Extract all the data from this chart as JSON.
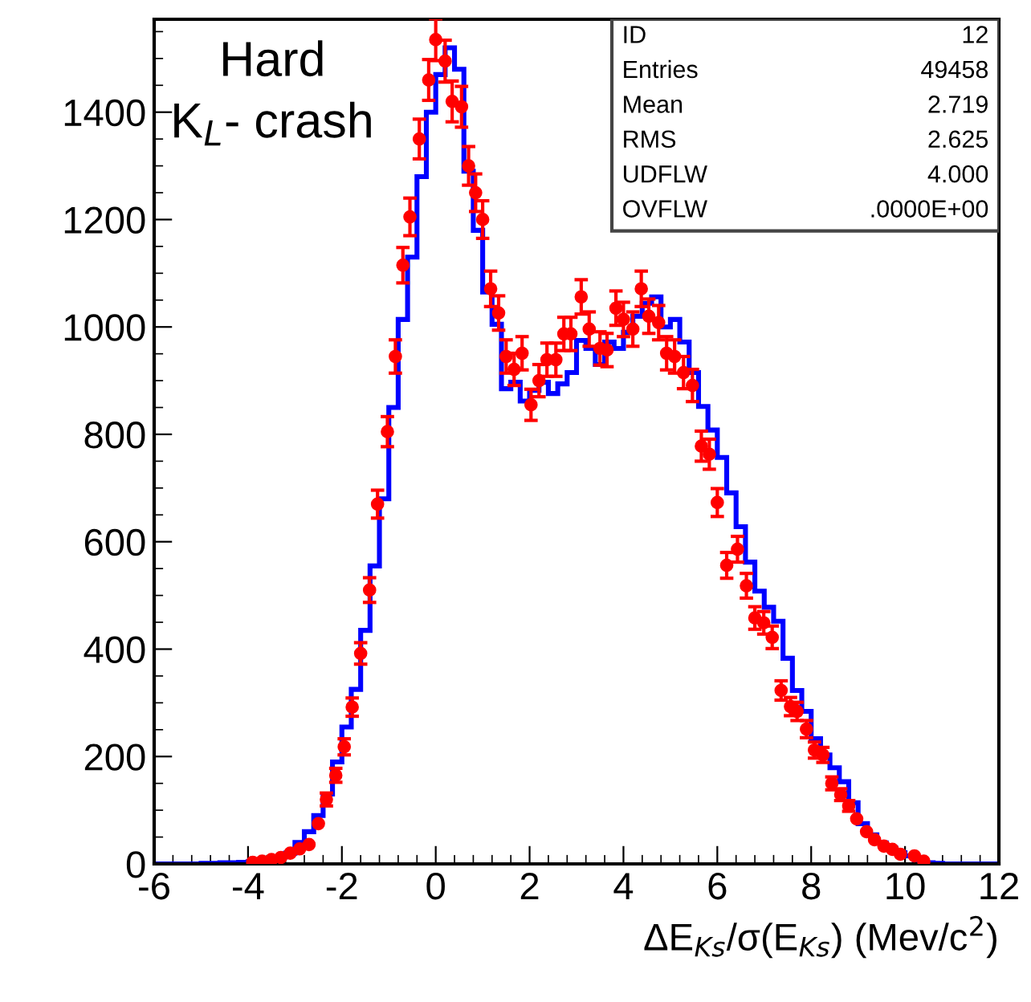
{
  "chart_data": {
    "type": "histogram",
    "xlabel": "ΔE$_{Ks}$/σ(E$_{Ks}$) (Mev/c$^{2}$)",
    "xlim": [
      -6,
      12
    ],
    "xticks": [
      -6,
      -4,
      -2,
      0,
      2,
      4,
      6,
      8,
      10,
      12
    ],
    "ylim": [
      0,
      1573
    ],
    "yticks": [
      0,
      200,
      400,
      600,
      800,
      1000,
      1200,
      1400
    ],
    "grid": false,
    "annotations": [
      "Hard\nK$_{L}$- crash",
      "ID",
      "12",
      "Entries",
      "49458",
      "Mean",
      "2.719",
      "RMS",
      "2.625",
      "UDFLW",
      "4.000",
      "OVFLW",
      ".0000E+00"
    ],
    "series": [
      {
        "color": "#0000ff",
        "bins": [
          -6.0,
          -5.8,
          -5.6,
          -5.4,
          -5.2,
          -5.0,
          -4.8,
          -4.6,
          -4.4,
          -4.2,
          -4.0,
          -3.8,
          -3.6,
          -3.4,
          -3.2,
          -3.0,
          -2.8,
          -2.6,
          -2.4,
          -2.2,
          -2.0,
          -1.8,
          -1.6,
          -1.4,
          -1.2,
          -1.0,
          -0.8,
          -0.6,
          -0.4,
          -0.2,
          0.0,
          0.2,
          0.4,
          0.6,
          0.8,
          1.0,
          1.2,
          1.4,
          1.6,
          1.8,
          2.0,
          2.2,
          2.4,
          2.6,
          2.8,
          3.0,
          3.2,
          3.4,
          3.6,
          3.8,
          4.0,
          4.2,
          4.4,
          4.6,
          4.8,
          5.0,
          5.2,
          5.4,
          5.6,
          5.8,
          6.0,
          6.2,
          6.4,
          6.6,
          6.8,
          7.0,
          7.2,
          7.4,
          7.6,
          7.8,
          8.0,
          8.2,
          8.4,
          8.6,
          8.8,
          9.0,
          9.2,
          9.4,
          9.6,
          9.8,
          10.0,
          10.2,
          10.4,
          10.6,
          10.8,
          11.0,
          11.2,
          11.4,
          11.6,
          11.8,
          12.0
        ],
        "values": [
          0,
          0,
          0,
          0,
          0,
          1,
          1,
          2,
          2,
          3,
          4,
          6,
          9,
          13,
          20,
          40,
          60,
          90,
          130,
          190,
          255,
          325,
          435,
          555,
          680,
          850,
          1014,
          1130,
          1280,
          1400,
          1470,
          1520,
          1480,
          1290,
          1180,
          1065,
          1005,
          885,
          897,
          862,
          882,
          897,
          876,
          894,
          915,
          975,
          960,
          930,
          972,
          960,
          990,
          1020,
          1044,
          1056,
          1000,
          1014,
          972,
          915,
          852,
          808,
          757,
          691,
          628,
          562,
          508,
          478,
          452,
          383,
          323,
          284,
          233,
          203,
          179,
          153,
          114,
          75,
          54,
          39,
          30,
          21,
          15,
          5,
          2,
          1,
          0,
          0,
          0,
          0,
          0,
          0
        ]
      },
      {
        "type": "scatter",
        "color": "#ff0000",
        "marker": "circle",
        "x": [
          -3.9,
          -3.7,
          -3.5,
          -3.3,
          -3.1,
          -2.9,
          -2.7,
          -2.5,
          -2.33,
          -2.13,
          -1.95,
          -1.78,
          -1.6,
          -1.41,
          -1.24,
          -1.03,
          -0.86,
          -0.7,
          -0.55,
          -0.35,
          -0.15,
          0.0,
          0.2,
          0.35,
          0.55,
          0.7,
          0.85,
          1.0,
          1.17,
          1.34,
          1.5,
          1.67,
          1.84,
          2.03,
          2.2,
          2.37,
          2.56,
          2.73,
          2.88,
          3.1,
          3.27,
          3.5,
          3.65,
          3.84,
          4.0,
          4.2,
          4.38,
          4.54,
          4.75,
          4.92,
          5.09,
          5.28,
          5.47,
          5.66,
          5.83,
          6.0,
          6.2,
          6.43,
          6.62,
          6.8,
          6.99,
          7.17,
          7.36,
          7.56,
          7.7,
          7.9,
          8.07,
          8.25,
          8.44,
          8.63,
          8.8,
          8.97,
          9.18,
          9.35,
          9.55,
          9.73,
          9.9,
          10.2,
          10.4
        ],
        "values": [
          3,
          5,
          8,
          12,
          20,
          28,
          36,
          75,
          120,
          165,
          218,
          292,
          392,
          510,
          670,
          805,
          945,
          1115,
          1205,
          1350,
          1460,
          1535,
          1495,
          1420,
          1410,
          1300,
          1250,
          1200,
          1071,
          1026,
          945,
          921,
          951,
          855,
          900,
          939,
          939,
          987,
          987,
          1056,
          996,
          960,
          957,
          1035,
          1014,
          996,
          1071,
          1020,
          1008,
          951,
          945,
          915,
          891,
          778,
          763,
          673,
          556,
          586,
          518,
          458,
          449,
          422,
          323,
          293,
          284,
          251,
          212,
          203,
          150,
          129,
          108,
          84,
          60,
          45,
          33,
          27,
          18,
          15,
          5
        ],
        "errors": [
          null,
          null,
          null,
          null,
          null,
          null,
          null,
          null,
          12,
          13,
          15,
          17,
          20,
          23,
          26,
          28,
          31,
          33,
          35,
          37,
          38,
          39,
          39,
          38,
          38,
          36,
          35,
          35,
          33,
          32,
          31,
          30,
          31,
          29,
          30,
          31,
          31,
          31,
          31,
          32,
          32,
          31,
          31,
          32,
          32,
          32,
          33,
          32,
          32,
          31,
          31,
          30,
          30,
          28,
          28,
          26,
          24,
          24,
          23,
          21,
          21,
          21,
          18,
          17,
          17,
          16,
          15,
          14,
          12,
          11,
          10,
          null,
          null,
          null,
          null,
          null,
          null,
          null,
          null
        ]
      }
    ]
  }
}
